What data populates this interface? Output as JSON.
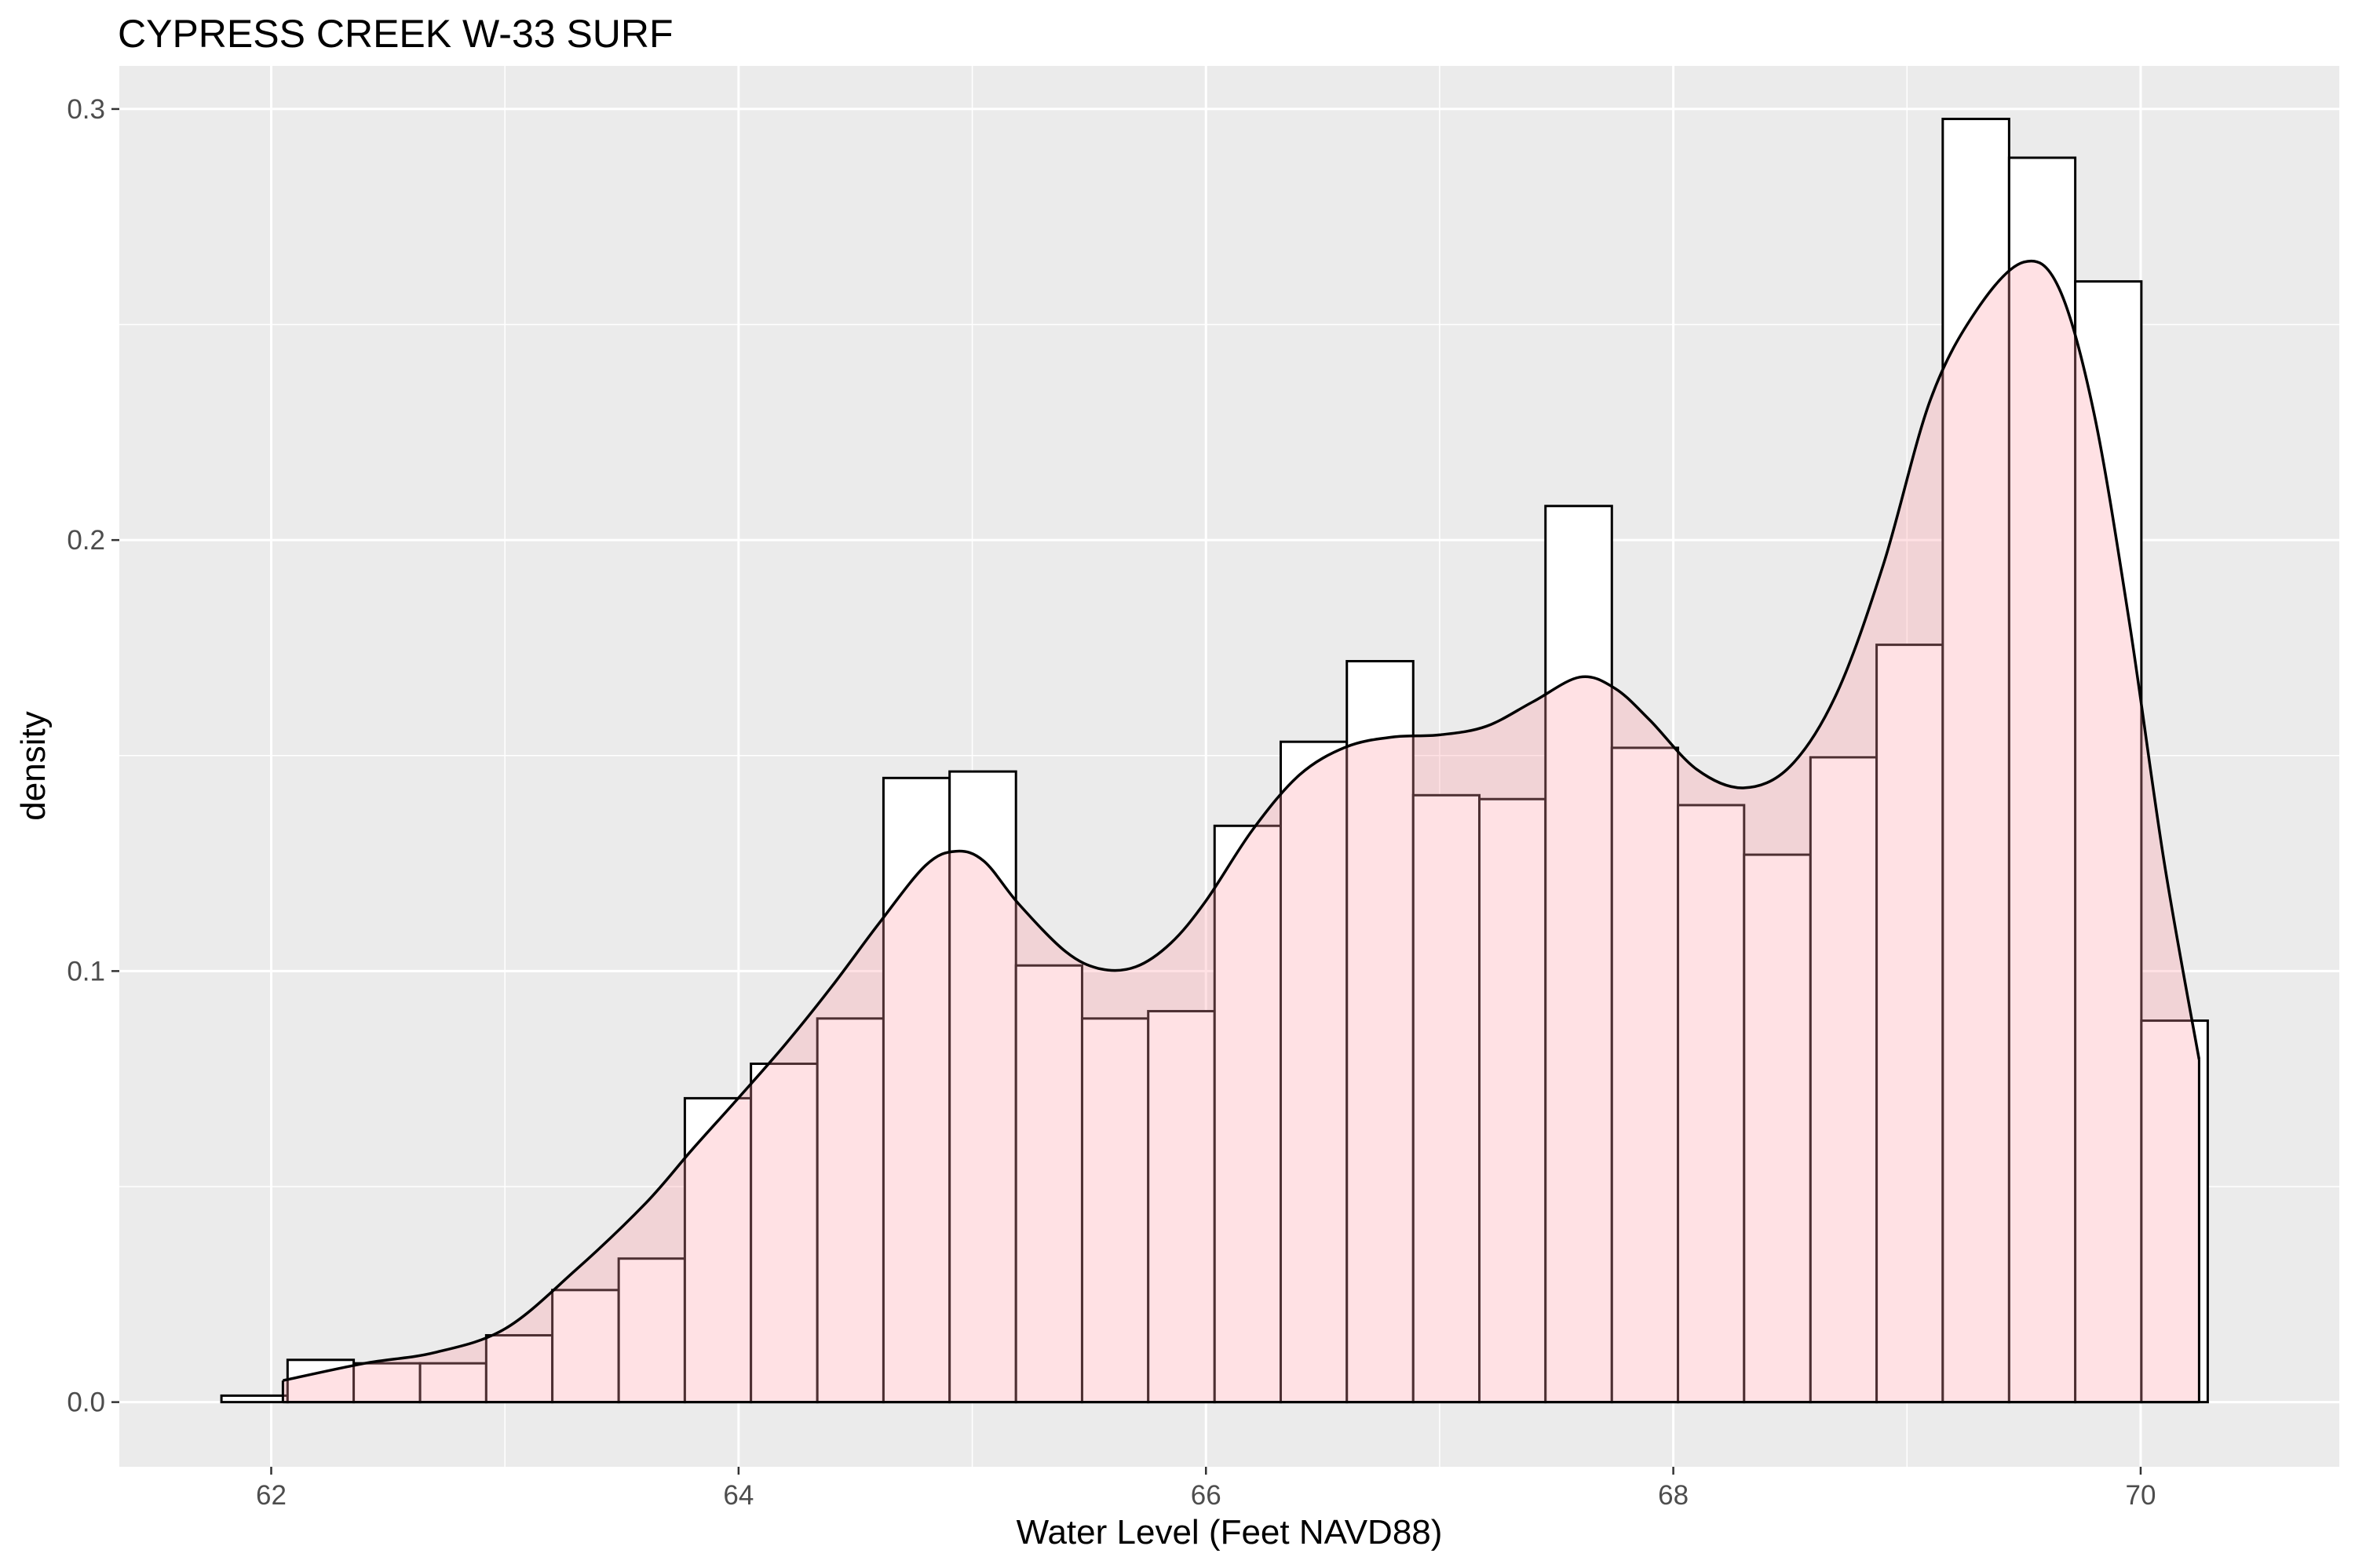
{
  "chart_data": {
    "type": "histogram",
    "title": "CYPRESS CREEK W-33 SURF",
    "xlabel": "Water Level (Feet NAVD88)",
    "ylabel": "density",
    "xlim": [
      61.35,
      70.85
    ],
    "ylim": [
      -0.015,
      0.31
    ],
    "x_ticks": [
      "62",
      "64",
      "66",
      "68",
      "70"
    ],
    "y_ticks": [
      "0.0",
      "0.1",
      "0.2",
      "0.3"
    ],
    "bin_width": 0.2833,
    "series": [
      {
        "kind": "histogram",
        "fill": "#ffffff",
        "stroke": "#000000",
        "bins": [
          {
            "x0": 61.787,
            "x1": 62.07,
            "density": 0.0015
          },
          {
            "x0": 62.07,
            "x1": 62.353,
            "density": 0.0098
          },
          {
            "x0": 62.353,
            "x1": 62.637,
            "density": 0.009
          },
          {
            "x0": 62.637,
            "x1": 62.92,
            "density": 0.009
          },
          {
            "x0": 62.92,
            "x1": 63.203,
            "density": 0.0155
          },
          {
            "x0": 63.203,
            "x1": 63.487,
            "density": 0.026
          },
          {
            "x0": 63.487,
            "x1": 63.77,
            "density": 0.0333
          },
          {
            "x0": 63.77,
            "x1": 64.053,
            "density": 0.0705
          },
          {
            "x0": 64.053,
            "x1": 64.337,
            "density": 0.0785
          },
          {
            "x0": 64.337,
            "x1": 64.62,
            "density": 0.089
          },
          {
            "x0": 64.62,
            "x1": 64.903,
            "density": 0.1448
          },
          {
            "x0": 64.903,
            "x1": 65.187,
            "density": 0.1463
          },
          {
            "x0": 65.187,
            "x1": 65.47,
            "density": 0.1013
          },
          {
            "x0": 65.47,
            "x1": 65.753,
            "density": 0.089
          },
          {
            "x0": 65.753,
            "x1": 66.037,
            "density": 0.0907
          },
          {
            "x0": 66.037,
            "x1": 66.32,
            "density": 0.1337
          },
          {
            "x0": 66.32,
            "x1": 66.603,
            "density": 0.1532
          },
          {
            "x0": 66.603,
            "x1": 66.887,
            "density": 0.1719
          },
          {
            "x0": 66.887,
            "x1": 67.17,
            "density": 0.1408
          },
          {
            "x0": 67.17,
            "x1": 67.453,
            "density": 0.1399
          },
          {
            "x0": 67.453,
            "x1": 67.737,
            "density": 0.2079
          },
          {
            "x0": 67.737,
            "x1": 68.02,
            "density": 0.1518
          },
          {
            "x0": 68.02,
            "x1": 68.303,
            "density": 0.1385
          },
          {
            "x0": 68.303,
            "x1": 68.587,
            "density": 0.127
          },
          {
            "x0": 68.587,
            "x1": 68.87,
            "density": 0.1496
          },
          {
            "x0": 68.87,
            "x1": 69.153,
            "density": 0.1757
          },
          {
            "x0": 69.153,
            "x1": 69.437,
            "density": 0.2977
          },
          {
            "x0": 69.437,
            "x1": 69.72,
            "density": 0.2887
          },
          {
            "x0": 69.72,
            "x1": 70.003,
            "density": 0.26
          },
          {
            "x0": 70.003,
            "x1": 70.287,
            "density": 0.0885
          }
        ]
      },
      {
        "kind": "density",
        "fill": "#ff9aa6",
        "fill_opacity": 0.3,
        "stroke": "#000000",
        "x": [
          62.05,
          62.4,
          62.7,
          63.0,
          63.3,
          63.6,
          63.8,
          64.0,
          64.2,
          64.4,
          64.6,
          64.8,
          64.93,
          65.05,
          65.2,
          65.4,
          65.55,
          65.7,
          65.85,
          66.0,
          66.2,
          66.4,
          66.6,
          66.8,
          67.0,
          67.2,
          67.4,
          67.6,
          67.75,
          67.9,
          68.1,
          68.3,
          68.5,
          68.7,
          68.9,
          69.1,
          69.3,
          69.5,
          69.65,
          69.8,
          69.95,
          70.1,
          70.25
        ],
        "y": [
          0.005,
          0.009,
          0.0115,
          0.017,
          0.0305,
          0.046,
          0.0585,
          0.0706,
          0.083,
          0.0965,
          0.111,
          0.1245,
          0.1278,
          0.1255,
          0.1155,
          0.1045,
          0.1005,
          0.101,
          0.1065,
          0.1163,
          0.1328,
          0.1455,
          0.152,
          0.1543,
          0.1548,
          0.1568,
          0.1625,
          0.1682,
          0.1656,
          0.1582,
          0.1468,
          0.1425,
          0.1475,
          0.1645,
          0.1945,
          0.2325,
          0.2535,
          0.2645,
          0.2585,
          0.2295,
          0.1815,
          0.1255,
          0.0795
        ]
      }
    ],
    "grid": true,
    "legend": "none",
    "panel_background": "#ebebeb",
    "gridline_color": "#ffffff"
  }
}
